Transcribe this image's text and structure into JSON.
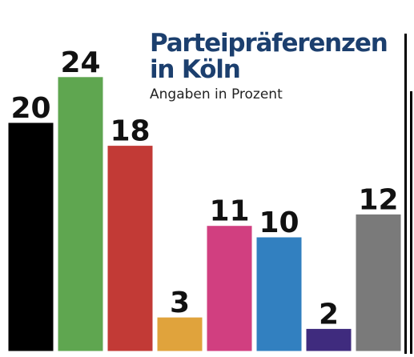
{
  "chart_data": {
    "type": "bar",
    "title_lines": [
      "Parteipräferenzen",
      "in Köln"
    ],
    "subtitle": "Angaben in Prozent",
    "xlabel": "",
    "ylabel": "",
    "ylim": [
      0,
      24
    ],
    "grid": false,
    "legend": "none",
    "categories": [
      "",
      "",
      "",
      "",
      "",
      "",
      "",
      ""
    ],
    "values": [
      20,
      24,
      18,
      3,
      11,
      10,
      2,
      12
    ],
    "value_labels": [
      "20",
      "24",
      "18",
      "3",
      "11",
      "10",
      "2",
      "12"
    ],
    "colors": [
      "#000000",
      "#5fa650",
      "#c23a36",
      "#e0a33c",
      "#d13f80",
      "#3280c0",
      "#3f2b7e",
      "#7a7a7a"
    ]
  }
}
